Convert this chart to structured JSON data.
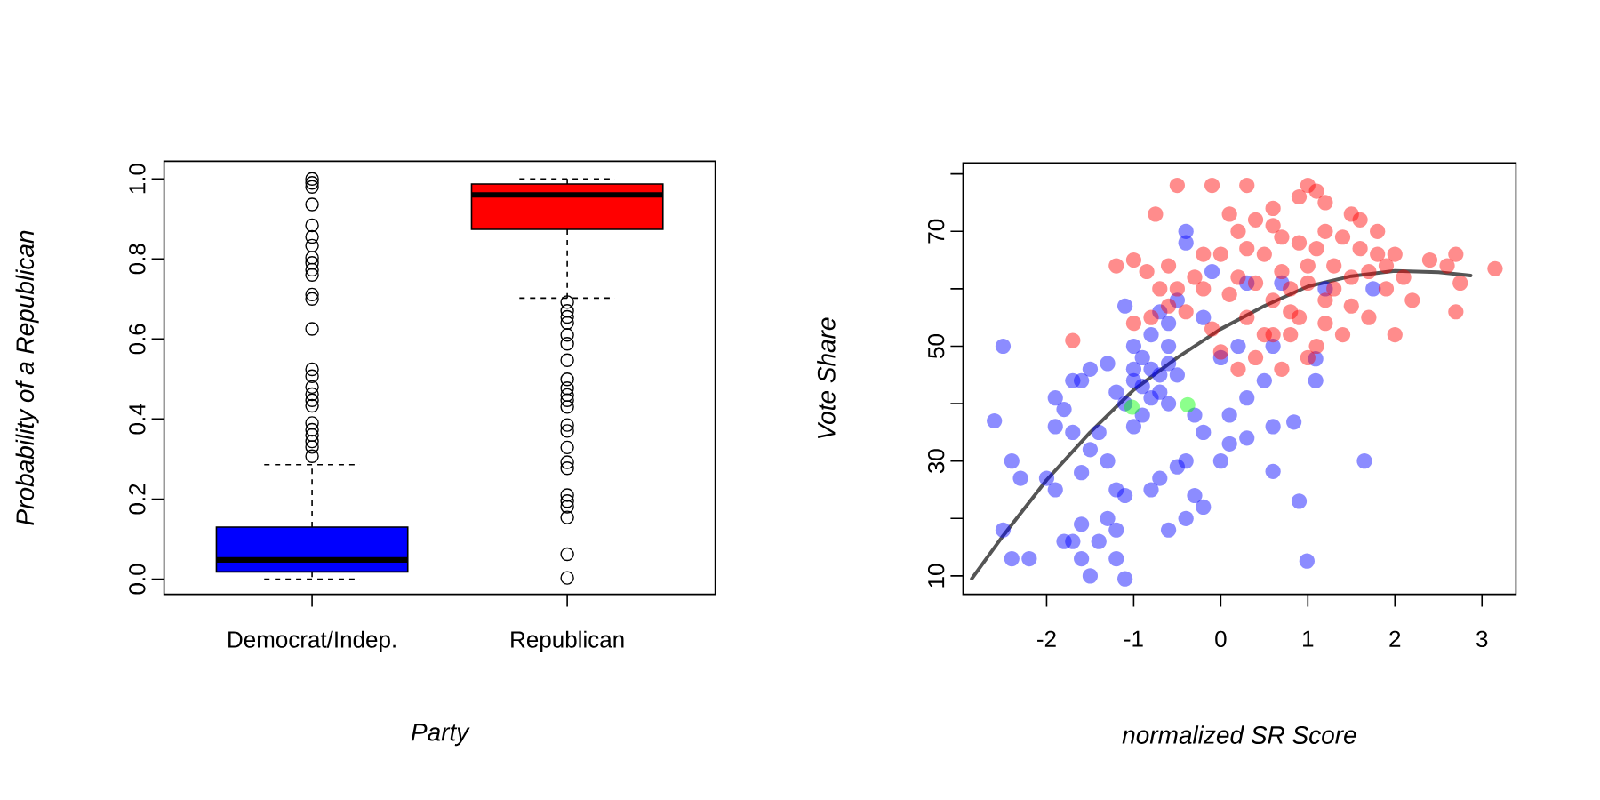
{
  "chart_data": [
    {
      "type": "box",
      "categories": [
        "Democrat/Indep.",
        "Republican"
      ],
      "xlabel": "Party",
      "ylabel": "Probability of a Republican",
      "ylim": [
        -0.038,
        1.044
      ],
      "yticks": [
        {
          "value": 0,
          "label": "0.0"
        },
        {
          "value": 0.2,
          "label": "0.2"
        },
        {
          "value": 0.4,
          "label": "0.4"
        },
        {
          "value": 0.6,
          "label": "0.6"
        },
        {
          "value": 0.8,
          "label": "0.8"
        },
        {
          "value": 1,
          "label": "1.0"
        }
      ],
      "colors": [
        "#0000ff",
        "#ff0000"
      ],
      "boxes": [
        {
          "low": 0,
          "q1": 0.018,
          "median": 0.048,
          "q3": 0.13,
          "high": 0.286,
          "outliers": [
            0.307,
            0.33,
            0.344,
            0.36,
            0.373,
            0.39,
            0.433,
            0.447,
            0.462,
            0.48,
            0.507,
            0.524,
            0.625,
            0.7,
            0.711,
            0.76,
            0.773,
            0.79,
            0.803,
            0.833,
            0.855,
            0.884,
            0.936,
            0.98,
            0.99,
            1.0
          ]
        },
        {
          "low": 0.702,
          "q1": 0.874,
          "median": 0.96,
          "q3": 0.987,
          "high": 1.0,
          "outliers": [
            0.692,
            0.67,
            0.655,
            0.64,
            0.61,
            0.588,
            0.547,
            0.499,
            0.477,
            0.46,
            0.447,
            0.43,
            0.385,
            0.37,
            0.329,
            0.292,
            0.277,
            0.21,
            0.195,
            0.181,
            0.154,
            0.062,
            0.003
          ]
        }
      ]
    },
    {
      "type": "scatter",
      "xlabel": "normalized SR Score",
      "ylabel": "Vote Share",
      "xlim": [
        -2.96,
        3.39
      ],
      "ylim": [
        6.8,
        81.9
      ],
      "xticks": [
        -2,
        -1,
        0,
        1,
        2,
        3
      ],
      "yticks": [
        10,
        {
          "value": 20,
          "label": null
        },
        30,
        {
          "value": 40,
          "label": null
        },
        50,
        {
          "value": 60,
          "label": null
        },
        70,
        {
          "value": 80,
          "label": null
        }
      ],
      "series": [
        {
          "color": "#0000ff",
          "x": [
            -2.6,
            -2.5,
            -2.4,
            -2.5,
            -2.4,
            -2.3,
            -2.2,
            -2.0,
            -1.9,
            -1.8,
            -1.7,
            -1.6,
            -1.6,
            -1.5,
            -1.4,
            -1.3,
            -1.2,
            -1.2,
            -1.1,
            -1.1,
            -1.2,
            -1.3,
            -1.4,
            -1.5,
            -1.6,
            -1.7,
            -1.8,
            -1.9,
            -1.9,
            -1.7,
            -1.6,
            -1.5,
            -1.3,
            -1.0,
            -0.9,
            -0.8,
            -0.7,
            -0.6,
            -0.9,
            -1.0,
            -1.1,
            -1.2,
            -0.8,
            -0.7,
            -0.5,
            -0.4,
            -0.4,
            -0.6,
            -0.5,
            -0.3,
            -0.2,
            -0.4,
            -0.5,
            -0.7,
            -0.8,
            -0.3,
            -0.6,
            -0.4,
            -0.2,
            0.0,
            0.1,
            0.1,
            0.3,
            0.3,
            0.5,
            0.6,
            0.84,
            0.9,
            0.6,
            0.99,
            1.09,
            1.09,
            1.65,
            1.75,
            0.7,
            0.3,
            -0.2,
            -0.1,
            0.0,
            0.2,
            -1.1,
            -0.6,
            -1.0,
            0.6,
            1.2,
            -0.9,
            -0.7,
            -0.8,
            -1.0,
            -0.6
          ],
          "values": [
            37,
            50,
            30,
            18,
            13,
            27,
            13,
            27,
            25,
            16,
            16,
            19,
            13,
            10,
            16,
            20,
            18,
            13,
            9.5,
            24,
            25,
            30,
            35,
            32,
            28,
            35,
            39,
            36,
            41,
            44,
            44,
            46,
            47,
            44,
            48,
            46,
            42,
            40,
            38,
            36,
            40,
            42,
            52,
            56,
            58,
            68,
            70,
            50,
            45,
            38,
            35,
            30,
            29,
            27,
            25,
            24,
            18,
            20,
            22,
            30,
            33,
            38,
            34,
            41,
            44,
            36,
            36.8,
            23,
            28.2,
            12.6,
            47.8,
            44,
            30,
            60,
            61,
            61,
            55,
            63,
            48,
            50,
            57,
            54,
            50,
            50,
            60,
            43,
            45,
            41,
            46,
            47
          ]
        },
        {
          "color": "#ff0000",
          "x": [
            -1.7,
            -1.2,
            -1.0,
            -0.85,
            -0.6,
            -0.75,
            -0.5,
            -1.0,
            -0.8,
            -0.6,
            -0.4,
            -0.2,
            -0.1,
            0.3,
            0.1,
            0.4,
            0.6,
            0.9,
            1.0,
            1.1,
            1.2,
            1.5,
            1.6,
            1.8,
            2.0,
            2.4,
            2.6,
            2.7,
            2.75,
            2.7,
            3.15,
            2.2,
            2.0,
            1.7,
            1.5,
            1.4,
            1.2,
            1.1,
            1.0,
            0.9,
            0.8,
            0.7,
            0.6,
            0.5,
            0.4,
            0.3,
            0.2,
            0.1,
            0.0,
            -0.2,
            -0.3,
            -0.1,
            0.0,
            0.2,
            0.7,
            0.6,
            0.8,
            1.3,
            1.3,
            1.5,
            1.7,
            1.8,
            1.9,
            2.1,
            1.1,
            0.9,
            0.7,
            0.5,
            0.3,
            1.2,
            1.0,
            0.8,
            1.4,
            1.6,
            0.4,
            -0.5,
            -0.7,
            1.9,
            1.0,
            1.2,
            0.6,
            0.2
          ],
          "values": [
            51,
            64,
            65,
            63,
            64,
            73,
            78,
            54,
            55,
            57,
            56,
            60,
            78,
            78,
            73,
            72,
            74,
            76,
            78,
            77,
            75,
            73,
            72,
            70,
            66,
            65,
            64,
            66,
            61,
            56,
            63.5,
            58,
            52,
            55,
            57,
            52,
            54,
            50,
            48,
            55,
            60,
            63,
            58,
            52,
            48,
            55,
            62,
            59,
            66,
            66,
            62,
            53,
            49,
            46,
            46,
            52,
            52,
            60,
            64,
            62,
            63,
            66,
            60,
            62,
            67,
            68,
            69,
            66,
            67,
            58,
            61,
            56,
            69,
            67,
            61,
            60,
            60,
            64,
            64,
            70,
            71,
            70
          ]
        },
        {
          "color": "#00ff00",
          "x": [
            -1.02,
            -0.38
          ],
          "values": [
            39.4,
            39.8
          ]
        },
        {
          "type": "line",
          "color": "#555555",
          "x": [
            -2.86,
            -2.5,
            -2.0,
            -1.5,
            -1.0,
            -0.5,
            0.0,
            0.5,
            1.0,
            1.5,
            2.0,
            2.5,
            2.87
          ],
          "values": [
            9.5,
            17,
            26.7,
            35,
            42.4,
            48,
            53,
            57,
            60.4,
            62.2,
            63.1,
            62.9,
            62.3
          ]
        }
      ]
    }
  ]
}
